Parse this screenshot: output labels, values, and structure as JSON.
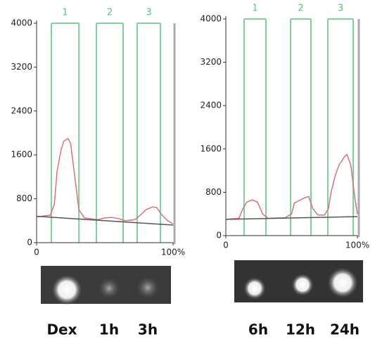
{
  "chart_data": [
    {
      "type": "line",
      "xlim": [
        0,
        100
      ],
      "xticks": [
        0,
        {
          "value": 100,
          "label": "100%"
        }
      ],
      "ylim": [
        0,
        4000
      ],
      "yticks": [
        0,
        800,
        1600,
        2400,
        3200,
        4000
      ],
      "lanes": [
        {
          "label": "1",
          "range": [
            10.8,
            31
          ]
        },
        {
          "label": "2",
          "range": [
            43.8,
            63.4
          ]
        },
        {
          "label": "3",
          "range": [
            73.7,
            90.7
          ]
        }
      ],
      "lane_color": "#7fcf9f",
      "series": [
        {
          "color": "#d9707a",
          "x": [
            0,
            10,
            13,
            15,
            18,
            20,
            23,
            25,
            28,
            31,
            35,
            45,
            50,
            55,
            60,
            65,
            72,
            76,
            80,
            85,
            88,
            92,
            96,
            100
          ],
          "values": [
            470,
            500,
            700,
            1300,
            1700,
            1850,
            1900,
            1800,
            1200,
            600,
            450,
            420,
            450,
            460,
            440,
            400,
            420,
            500,
            600,
            650,
            640,
            500,
            400,
            340
          ]
        },
        {
          "color": "#555555",
          "x": [
            0,
            100
          ],
          "values": [
            480,
            320
          ]
        }
      ],
      "sample_labels": [
        "Dex",
        "1h",
        "3h"
      ]
    },
    {
      "type": "line",
      "xlim": [
        0,
        100
      ],
      "xticks": [
        0,
        {
          "value": 100,
          "label": "100%"
        }
      ],
      "ylim": [
        0,
        4000
      ],
      "yticks": [
        0,
        800,
        1600,
        2400,
        3200,
        4000
      ],
      "lanes": [
        {
          "label": "1",
          "range": [
            13.9,
            30.5
          ]
        },
        {
          "label": "2",
          "range": [
            49.2,
            64.7
          ]
        },
        {
          "label": "3",
          "range": [
            77.5,
            96.8
          ]
        }
      ],
      "lane_color": "#7fcf9f",
      "series": [
        {
          "color": "#d9707a",
          "x": [
            0,
            10,
            13,
            16,
            20,
            24,
            28,
            32,
            45,
            50,
            52,
            56,
            60,
            63,
            66,
            70,
            75,
            78,
            80,
            83,
            86,
            90,
            92,
            95,
            98,
            100
          ],
          "values": [
            300,
            320,
            500,
            620,
            660,
            620,
            400,
            320,
            330,
            400,
            600,
            650,
            700,
            720,
            500,
            380,
            380,
            500,
            800,
            1100,
            1300,
            1450,
            1500,
            1300,
            700,
            400
          ]
        },
        {
          "color": "#555555",
          "x": [
            0,
            100
          ],
          "values": [
            300,
            350
          ]
        }
      ],
      "sample_labels": [
        "6h",
        "12h",
        "24h"
      ]
    }
  ]
}
